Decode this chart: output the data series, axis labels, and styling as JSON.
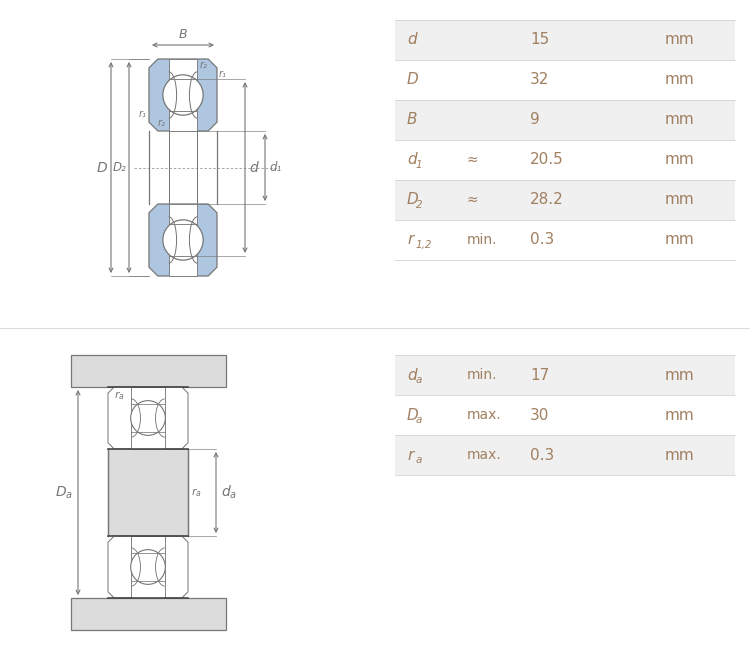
{
  "bg_color": "#ffffff",
  "table1": {
    "rows": [
      {
        "label": "d",
        "sub": "",
        "qualifier": "",
        "value": "15",
        "unit": "mm",
        "shaded": true
      },
      {
        "label": "D",
        "sub": "",
        "qualifier": "",
        "value": "32",
        "unit": "mm",
        "shaded": false
      },
      {
        "label": "B",
        "sub": "",
        "qualifier": "",
        "value": "9",
        "unit": "mm",
        "shaded": true
      },
      {
        "label": "d",
        "sub": "1",
        "qualifier": "≈",
        "value": "20.5",
        "unit": "mm",
        "shaded": false
      },
      {
        "label": "D",
        "sub": "2",
        "qualifier": "≈",
        "value": "28.2",
        "unit": "mm",
        "shaded": true
      },
      {
        "label": "r",
        "sub": "1,2",
        "qualifier": "min.",
        "value": "0.3",
        "unit": "mm",
        "shaded": false
      }
    ]
  },
  "table2": {
    "rows": [
      {
        "label": "d",
        "sub": "a",
        "qualifier": "min.",
        "value": "17",
        "unit": "mm",
        "shaded": true
      },
      {
        "label": "D",
        "sub": "a",
        "qualifier": "max.",
        "value": "30",
        "unit": "mm",
        "shaded": false
      },
      {
        "label": "r",
        "sub": "a",
        "qualifier": "max.",
        "value": "0.3",
        "unit": "mm",
        "shaded": true
      }
    ]
  },
  "line_color": "#777777",
  "blue_fill": "#aec6e0",
  "gray_fill": "#c8c8c8",
  "gray_light": "#dcdcdc",
  "text_color": "#a08060",
  "dim_color": "#777777",
  "row_shaded": "#f0f0f0",
  "row_white": "#ffffff",
  "div_color": "#cccccc"
}
